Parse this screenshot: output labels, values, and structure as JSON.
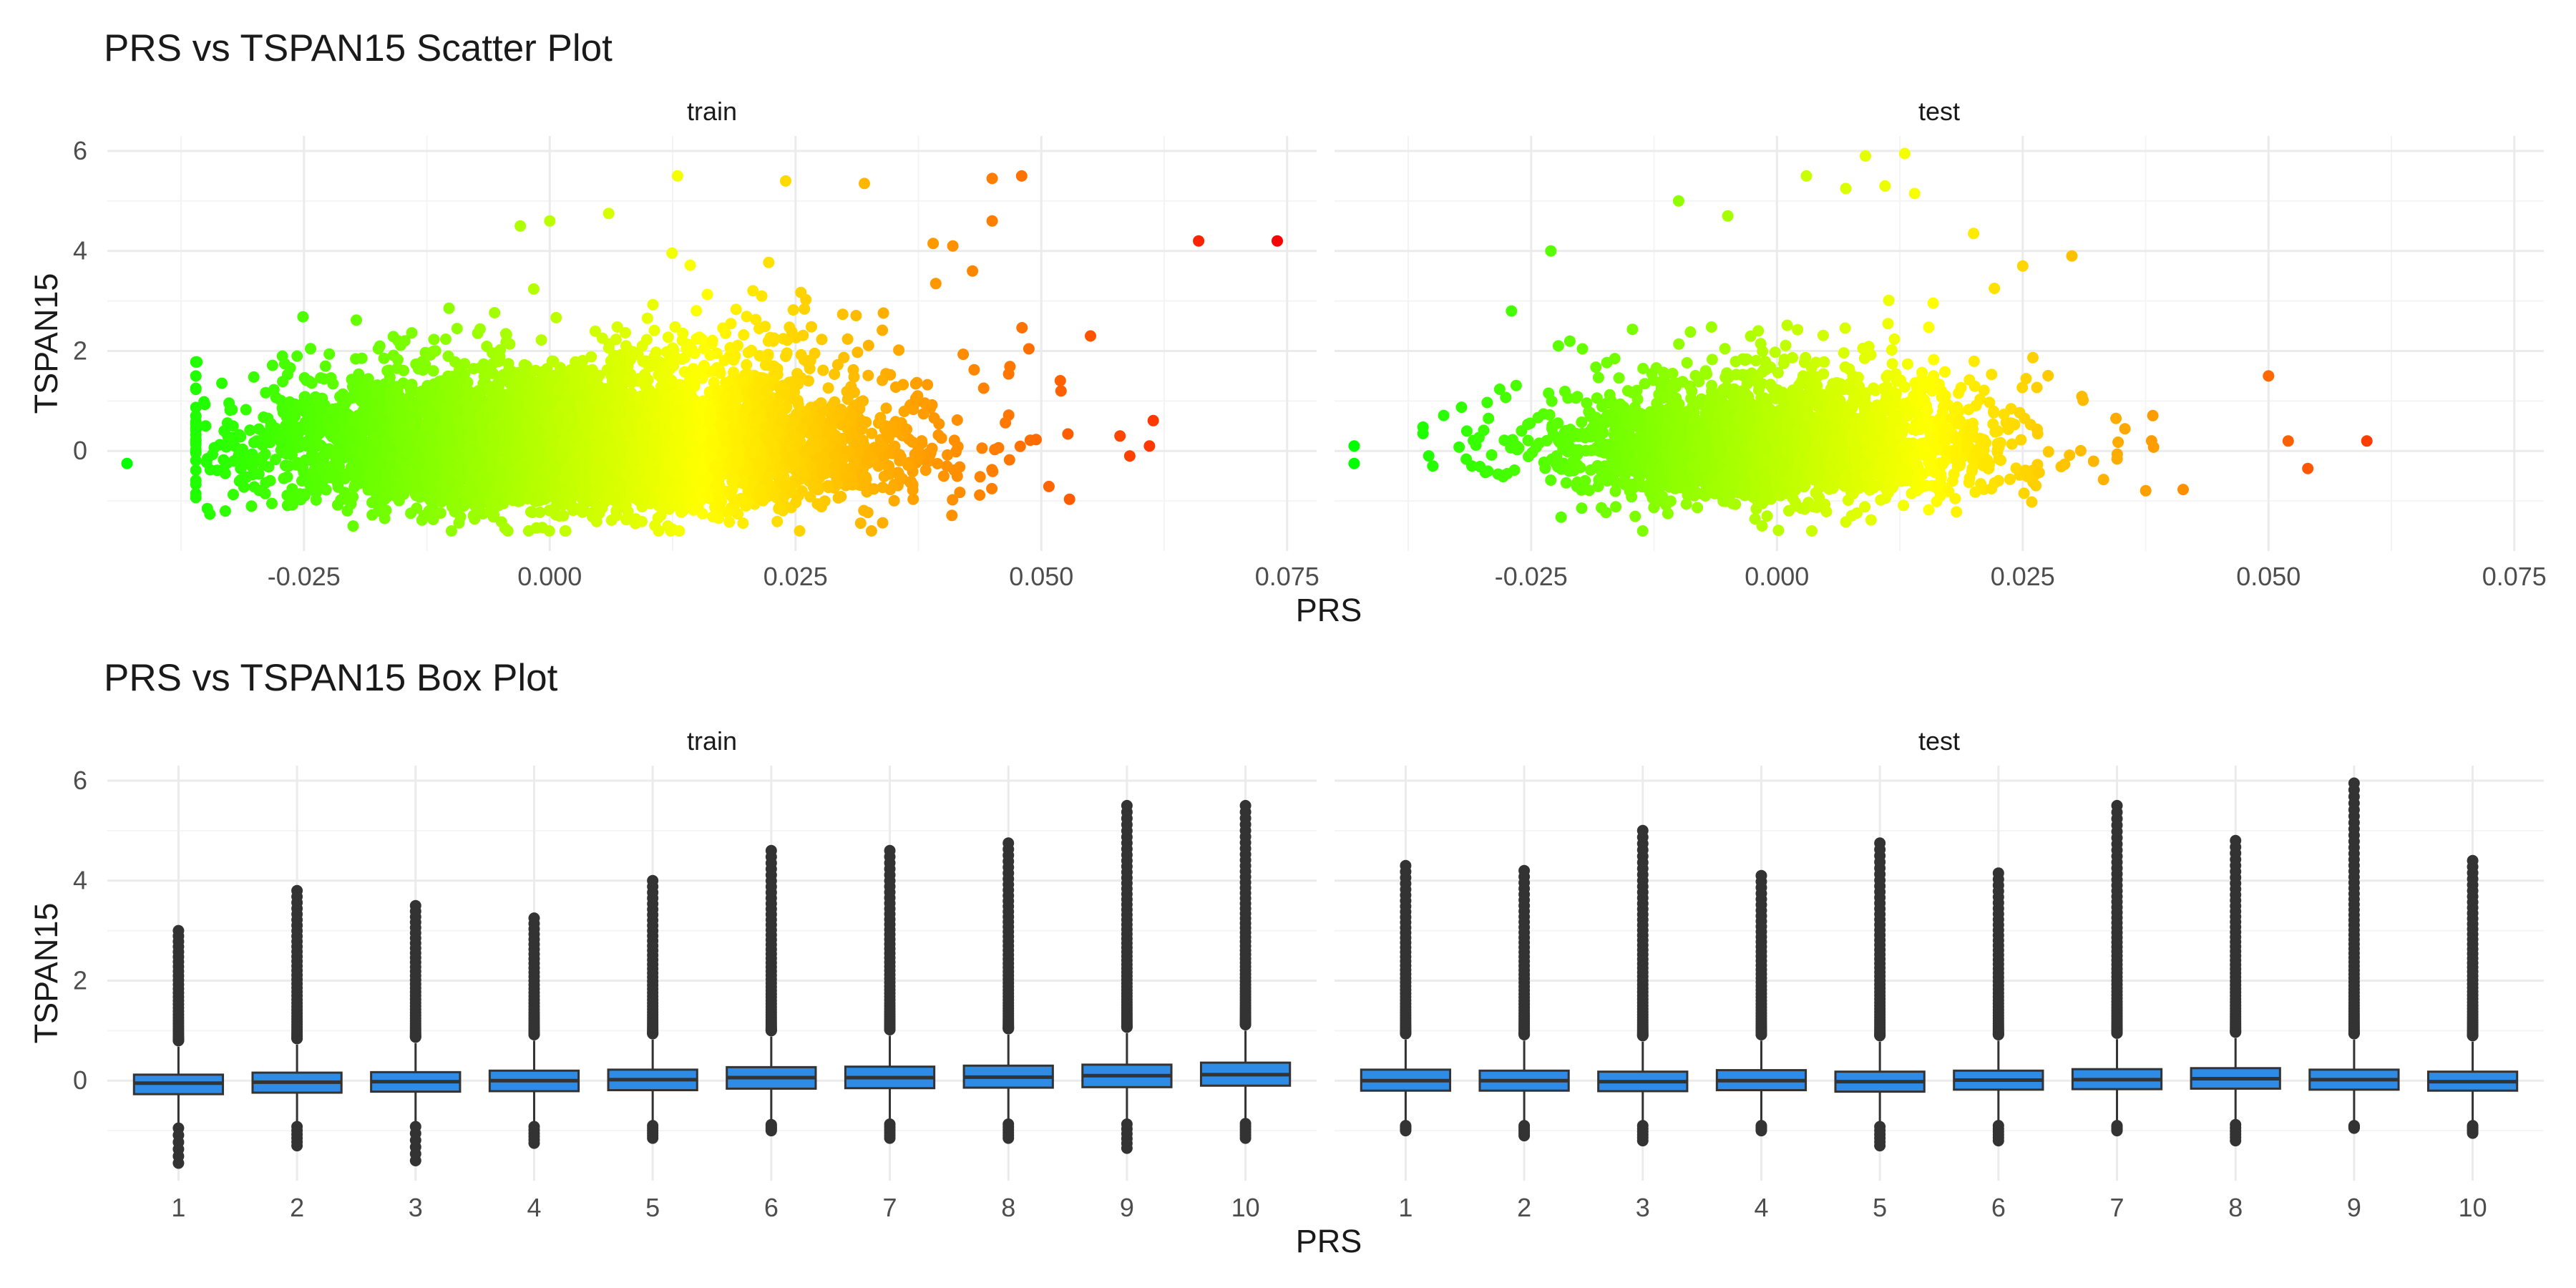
{
  "chart_data": [
    {
      "type": "scatter",
      "title": "PRS vs TSPAN15 Scatter Plot",
      "xlabel": "PRS",
      "ylabel": "TSPAN15",
      "xlim": [
        -0.045,
        0.078
      ],
      "ylim": [
        -2.0,
        6.3
      ],
      "x_ticks": [
        "-0.025",
        "0.000",
        "0.025",
        "0.050",
        "0.075"
      ],
      "y_ticks": [
        "0",
        "2",
        "4",
        "6"
      ],
      "grid": true,
      "legend": "none",
      "color_scale": {
        "low": "#00ff00",
        "high": "#ff0000",
        "mapped_to": "PRS"
      },
      "facets": [
        {
          "strip": "train",
          "n_points": 6000,
          "cloud": {
            "prs_mean": 0.003,
            "prs_sd": 0.015,
            "tspan15_center": 0.0,
            "tspan15_sd": 0.55,
            "outlier_scale": 0.75
          },
          "outliers": [
            [
              -0.043,
              -0.25
            ],
            [
              -0.035,
              0.5
            ],
            [
              -0.033,
              -1.2
            ],
            [
              0.066,
              4.2
            ],
            [
              0.074,
              4.2
            ],
            [
              0.055,
              2.3
            ],
            [
              0.048,
              5.5
            ],
            [
              0.045,
              5.45
            ],
            [
              0.045,
              4.6
            ],
            [
              0.013,
              5.5
            ],
            [
              0.024,
              5.4
            ],
            [
              0.032,
              5.35
            ],
            [
              0.0,
              4.6
            ],
            [
              -0.003,
              4.5
            ],
            [
              0.006,
              4.75
            ],
            [
              0.041,
              4.1
            ],
            [
              0.039,
              4.15
            ],
            [
              0.061,
              0.1
            ],
            [
              0.059,
              -0.1
            ],
            [
              0.058,
              0.3
            ],
            [
              0.052,
              1.2
            ],
            [
              -0.01,
              -1.6
            ],
            [
              0.012,
              -1.5
            ],
            [
              -0.02,
              -1.5
            ],
            [
              0.043,
              3.6
            ]
          ]
        },
        {
          "strip": "test",
          "n_points": 2600,
          "cloud": {
            "prs_mean": 0.0,
            "prs_sd": 0.011,
            "tspan15_center": 0.0,
            "tspan15_sd": 0.5,
            "outlier_scale": 0.7
          },
          "outliers": [
            [
              -0.043,
              0.1
            ],
            [
              -0.043,
              -0.25
            ],
            [
              -0.035,
              -0.3
            ],
            [
              0.06,
              0.2
            ],
            [
              0.05,
              1.5
            ],
            [
              0.054,
              -0.35
            ],
            [
              0.052,
              0.2
            ],
            [
              0.009,
              5.9
            ],
            [
              0.013,
              5.95
            ],
            [
              0.003,
              5.5
            ],
            [
              0.011,
              5.3
            ],
            [
              0.014,
              5.15
            ],
            [
              0.007,
              5.25
            ],
            [
              -0.01,
              5.0
            ],
            [
              -0.005,
              4.7
            ],
            [
              0.02,
              4.35
            ],
            [
              0.03,
              3.9
            ],
            [
              -0.023,
              4.0
            ],
            [
              -0.027,
              2.8
            ],
            [
              -0.001,
              -1.3
            ],
            [
              0.002,
              -1.1
            ],
            [
              -0.012,
              -1.0
            ],
            [
              0.025,
              3.7
            ]
          ]
        }
      ]
    },
    {
      "type": "box",
      "title": "PRS vs TSPAN15 Box Plot",
      "xlabel": "PRS",
      "ylabel": "TSPAN15",
      "ylim": [
        -2.0,
        6.3
      ],
      "categories": [
        "1",
        "2",
        "3",
        "4",
        "5",
        "6",
        "7",
        "8",
        "9",
        "10"
      ],
      "y_ticks": [
        "0",
        "2",
        "4",
        "6"
      ],
      "grid": true,
      "box_fill": "#2e8be6",
      "box_line": "#333333",
      "facets": [
        {
          "strip": "train",
          "boxes": [
            {
              "q1": -0.27,
              "median": -0.05,
              "q3": 0.12,
              "whisker_low": -0.85,
              "whisker_high": 0.68,
              "outlier_max": 3.0,
              "outlier_min": -1.65
            },
            {
              "q1": -0.24,
              "median": -0.03,
              "q3": 0.16,
              "whisker_low": -0.82,
              "whisker_high": 0.72,
              "outlier_max": 3.8,
              "outlier_min": -1.3
            },
            {
              "q1": -0.22,
              "median": -0.02,
              "q3": 0.17,
              "whisker_low": -0.82,
              "whisker_high": 0.75,
              "outlier_max": 3.5,
              "outlier_min": -1.6
            },
            {
              "q1": -0.21,
              "median": 0.0,
              "q3": 0.2,
              "whisker_low": -0.82,
              "whisker_high": 0.8,
              "outlier_max": 3.25,
              "outlier_min": -1.25
            },
            {
              "q1": -0.19,
              "median": 0.02,
              "q3": 0.22,
              "whisker_low": -0.8,
              "whisker_high": 0.82,
              "outlier_max": 4.0,
              "outlier_min": -1.15
            },
            {
              "q1": -0.16,
              "median": 0.06,
              "q3": 0.27,
              "whisker_low": -0.78,
              "whisker_high": 0.88,
              "outlier_max": 4.6,
              "outlier_min": -1.0
            },
            {
              "q1": -0.15,
              "median": 0.06,
              "q3": 0.28,
              "whisker_low": -0.77,
              "whisker_high": 0.9,
              "outlier_max": 4.6,
              "outlier_min": -1.15
            },
            {
              "q1": -0.14,
              "median": 0.07,
              "q3": 0.3,
              "whisker_low": -0.77,
              "whisker_high": 0.92,
              "outlier_max": 4.75,
              "outlier_min": -1.15
            },
            {
              "q1": -0.13,
              "median": 0.1,
              "q3": 0.32,
              "whisker_low": -0.77,
              "whisker_high": 0.95,
              "outlier_max": 5.5,
              "outlier_min": -1.35
            },
            {
              "q1": -0.1,
              "median": 0.12,
              "q3": 0.36,
              "whisker_low": -0.76,
              "whisker_high": 1.0,
              "outlier_max": 5.5,
              "outlier_min": -1.15
            }
          ]
        },
        {
          "strip": "test",
          "boxes": [
            {
              "q1": -0.2,
              "median": 0.0,
              "q3": 0.22,
              "whisker_low": -0.8,
              "whisker_high": 0.82,
              "outlier_max": 4.3,
              "outlier_min": -1.0
            },
            {
              "q1": -0.2,
              "median": 0.0,
              "q3": 0.2,
              "whisker_low": -0.8,
              "whisker_high": 0.8,
              "outlier_max": 4.2,
              "outlier_min": -1.1
            },
            {
              "q1": -0.21,
              "median": -0.02,
              "q3": 0.18,
              "whisker_low": -0.8,
              "whisker_high": 0.78,
              "outlier_max": 5.0,
              "outlier_min": -1.2
            },
            {
              "q1": -0.19,
              "median": 0.0,
              "q3": 0.21,
              "whisker_low": -0.8,
              "whisker_high": 0.8,
              "outlier_max": 4.1,
              "outlier_min": -1.0
            },
            {
              "q1": -0.22,
              "median": -0.02,
              "q3": 0.18,
              "whisker_low": -0.82,
              "whisker_high": 0.78,
              "outlier_max": 4.75,
              "outlier_min": -1.3
            },
            {
              "q1": -0.18,
              "median": 0.01,
              "q3": 0.2,
              "whisker_low": -0.8,
              "whisker_high": 0.8,
              "outlier_max": 4.15,
              "outlier_min": -1.2
            },
            {
              "q1": -0.17,
              "median": 0.02,
              "q3": 0.23,
              "whisker_low": -0.8,
              "whisker_high": 0.83,
              "outlier_max": 5.5,
              "outlier_min": -1.0
            },
            {
              "q1": -0.16,
              "median": 0.04,
              "q3": 0.25,
              "whisker_low": -0.78,
              "whisker_high": 0.85,
              "outlier_max": 4.8,
              "outlier_min": -1.2
            },
            {
              "q1": -0.18,
              "median": 0.02,
              "q3": 0.22,
              "whisker_low": -0.8,
              "whisker_high": 0.82,
              "outlier_max": 5.95,
              "outlier_min": -0.95
            },
            {
              "q1": -0.2,
              "median": -0.02,
              "q3": 0.18,
              "whisker_low": -0.8,
              "whisker_high": 0.78,
              "outlier_max": 4.4,
              "outlier_min": -1.05
            }
          ]
        }
      ]
    }
  ]
}
